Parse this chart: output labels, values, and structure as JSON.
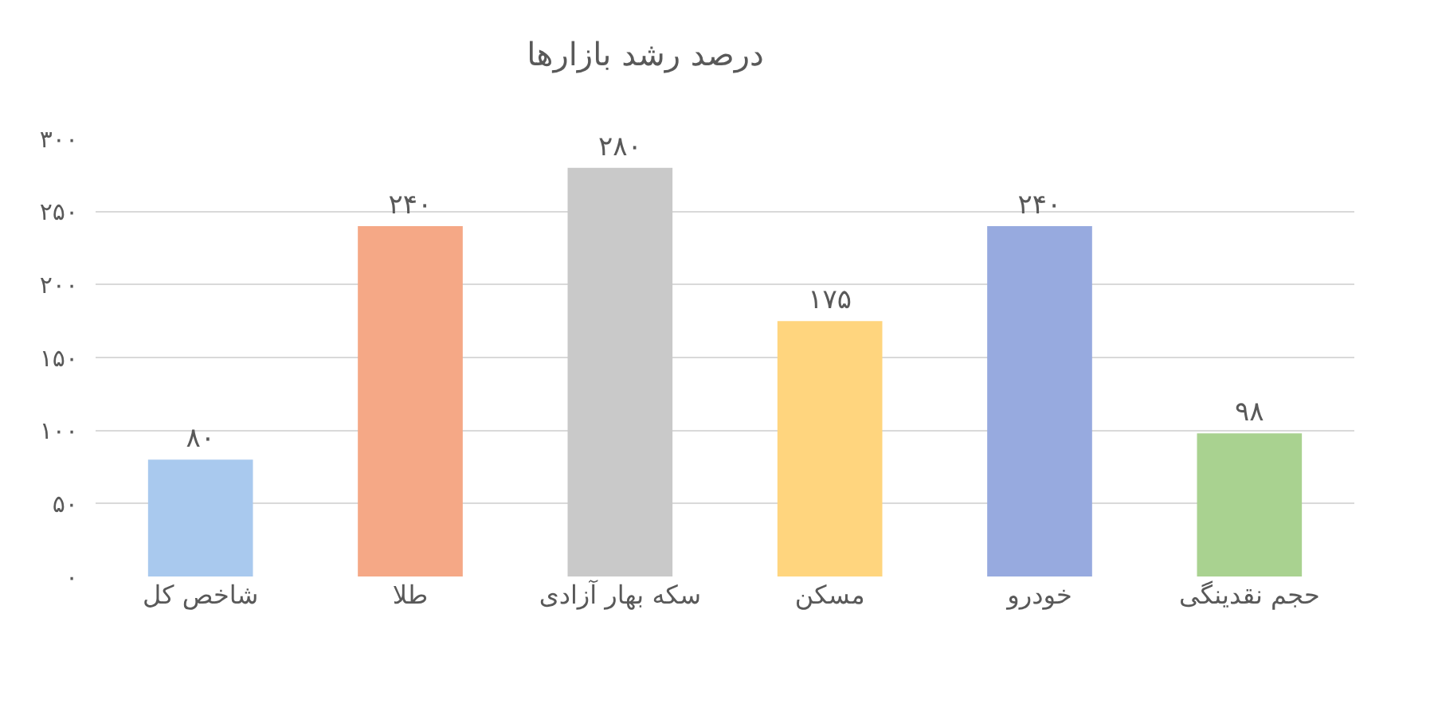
{
  "chart_data": {
    "type": "bar",
    "title": "درصد رشد بازارها",
    "categories": [
      "شاخص کل",
      "طلا",
      "سکه بهار آزادی",
      "مسکن",
      "خودرو",
      "حجم نقدینگی"
    ],
    "values": [
      80,
      240,
      280,
      175,
      240,
      98
    ],
    "colors": [
      "#a9c9ee",
      "#f5a886",
      "#c9c9c9",
      "#ffd57e",
      "#97aadf",
      "#a9d290"
    ],
    "value_labels": [
      "۸۰",
      "۲۴۰",
      "۲۸۰",
      "۱۷۵",
      "۲۴۰",
      "۹۸"
    ],
    "ylim": [
      0,
      300
    ],
    "yticks": [
      {
        "value": 0,
        "label": "۰"
      },
      {
        "value": 50,
        "label": "۵۰"
      },
      {
        "value": 100,
        "label": "۱۰۰"
      },
      {
        "value": 150,
        "label": "۱۵۰"
      },
      {
        "value": 200,
        "label": "۲۰۰"
      },
      {
        "value": 250,
        "label": "۲۵۰"
      },
      {
        "value": 300,
        "label": "۳۰۰"
      }
    ],
    "grid": "y",
    "legend": false
  }
}
